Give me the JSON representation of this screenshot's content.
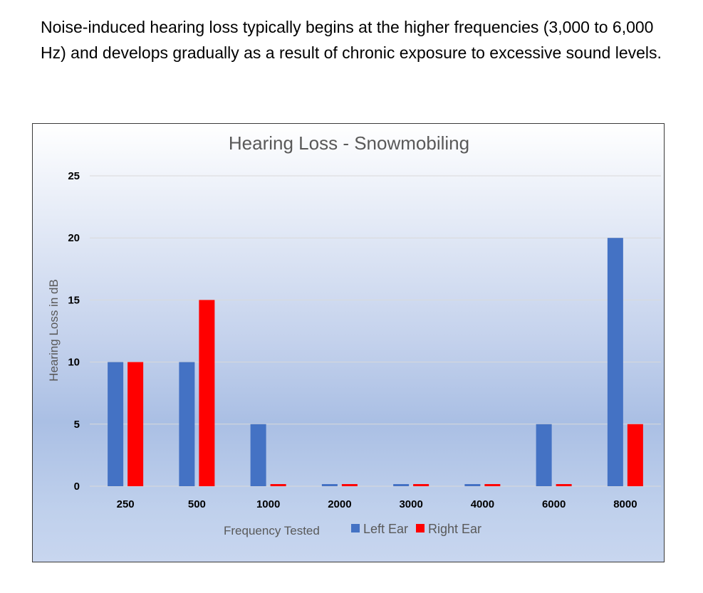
{
  "intro_text": "Noise-induced hearing loss typically begins at the higher frequencies (3,000 to 6,000 Hz) and develops gradually as a result of chronic exposure to excessive sound levels.",
  "chart_data": {
    "type": "bar",
    "title": "Hearing Loss - Snowmobiling",
    "xlabel": "Frequency Tested",
    "ylabel": "Hearing Loss in dB",
    "categories": [
      "250",
      "500",
      "1000",
      "2000",
      "3000",
      "4000",
      "6000",
      "8000"
    ],
    "series": [
      {
        "name": "Left Ear",
        "color": "#4472C4",
        "values": [
          10,
          10,
          5,
          0,
          0,
          0,
          5,
          20
        ]
      },
      {
        "name": "Right Ear",
        "color": "#FF0000",
        "values": [
          10,
          15,
          0,
          0,
          0,
          0,
          0,
          5
        ]
      }
    ],
    "ylim": [
      0,
      25
    ],
    "yticks": [
      "0",
      "5",
      "10",
      "15",
      "20",
      "25"
    ],
    "grid": true,
    "legend": "bottom"
  }
}
